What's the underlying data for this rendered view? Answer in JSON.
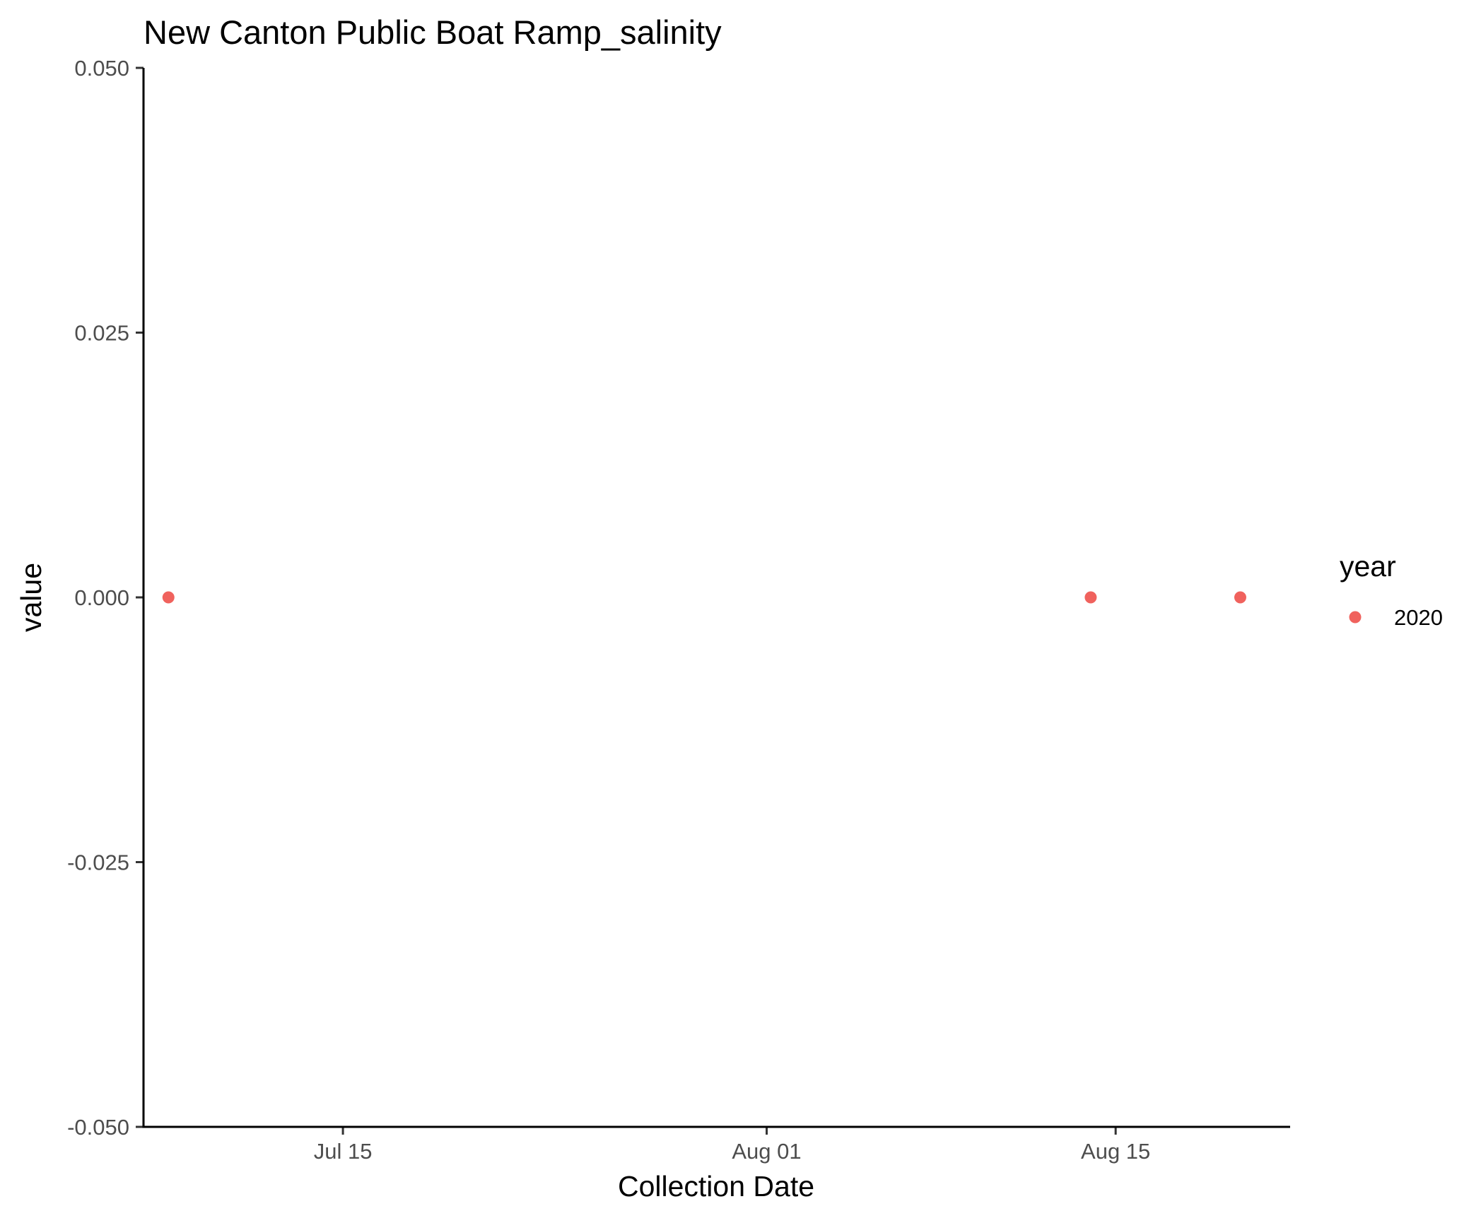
{
  "chart_data": {
    "type": "scatter",
    "title": "New Canton Public Boat Ramp_salinity",
    "xlabel": "Collection Date",
    "ylabel": "value",
    "x_type": "date",
    "xlim": [
      "2020-07-07",
      "2020-08-22"
    ],
    "ylim": [
      -0.05,
      0.05
    ],
    "x_ticks": [
      {
        "value": "2020-07-15",
        "label": "Jul 15"
      },
      {
        "value": "2020-08-01",
        "label": "Aug 01"
      },
      {
        "value": "2020-08-15",
        "label": "Aug 15"
      }
    ],
    "y_ticks": [
      {
        "value": -0.05,
        "label": "-0.050"
      },
      {
        "value": -0.025,
        "label": "-0.025"
      },
      {
        "value": 0.0,
        "label": "0.000"
      },
      {
        "value": 0.025,
        "label": "0.025"
      },
      {
        "value": 0.05,
        "label": "0.050"
      }
    ],
    "series": [
      {
        "name": "2020",
        "color": "#F0625D",
        "points": [
          {
            "x": "2020-07-08",
            "y": 0
          },
          {
            "x": "2020-08-14",
            "y": 0
          },
          {
            "x": "2020-08-20",
            "y": 0
          }
        ]
      }
    ],
    "legend": {
      "title": "year",
      "position": "right",
      "entries": [
        {
          "label": "2020",
          "color": "#F0625D"
        }
      ]
    },
    "grid": false
  }
}
